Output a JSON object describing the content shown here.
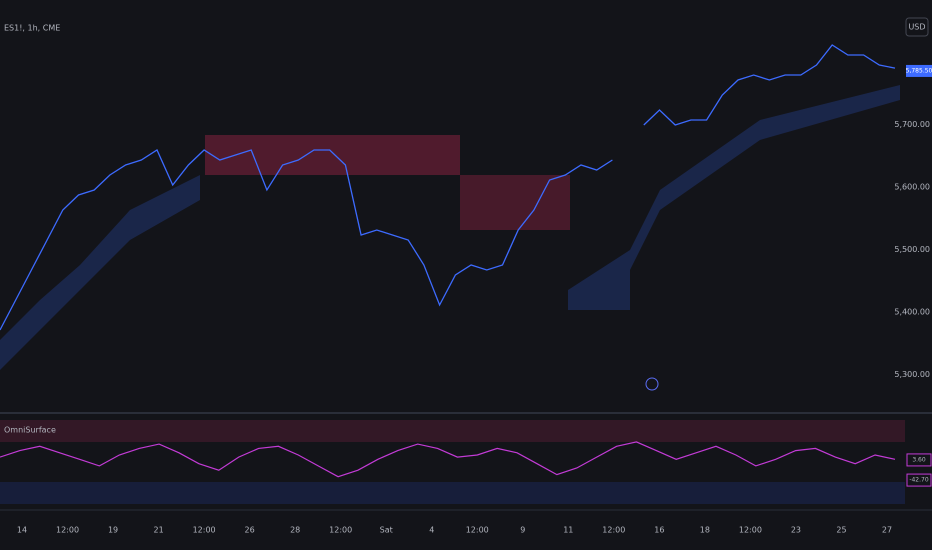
{
  "header": {
    "symbol": "ES1!, 1h, CME",
    "currency": "USD"
  },
  "price_pane": {
    "ylim": [
      5243,
      5899
    ],
    "yticks": [
      {
        "value": 5300,
        "label": "5,300.00"
      },
      {
        "value": 5400,
        "label": "5,400.00"
      },
      {
        "value": 5500,
        "label": "5,500.00"
      },
      {
        "value": 5600,
        "label": "5,600.00"
      },
      {
        "value": 5700,
        "label": "5,700.00"
      }
    ],
    "color": "#3d6bff",
    "values": [
      5371,
      5419,
      5467,
      5515,
      5563,
      5587,
      5595,
      5619,
      5635,
      5643,
      5659,
      5603,
      5635,
      5659,
      5643,
      5651,
      5659,
      5595,
      5635,
      5643,
      5659,
      5659,
      5635,
      5523,
      5531,
      5523,
      5515,
      5475,
      5411,
      5459,
      5475,
      5467,
      5475,
      5531,
      5563,
      5611,
      5619,
      5635,
      5627,
      5643,
      null,
      5699,
      5723,
      5699,
      5707,
      5707,
      5747,
      5771,
      5779,
      5771,
      5779,
      5779,
      5795,
      5827,
      5811,
      5811,
      5795,
      5790
    ],
    "last_price": {
      "value": 5785.5,
      "label": "5,785.50",
      "color": "#3d6bff"
    }
  },
  "indicator": {
    "name": "OmniSurface",
    "ylim": [
      -100,
      100
    ],
    "color": "#c33bd6",
    "values": [
      10,
      25,
      35,
      20,
      5,
      -10,
      15,
      30,
      40,
      20,
      -5,
      -20,
      10,
      30,
      35,
      15,
      -10,
      -35,
      -20,
      5,
      25,
      40,
      30,
      10,
      15,
      30,
      20,
      -5,
      -30,
      -15,
      10,
      35,
      45,
      25,
      5,
      20,
      35,
      15,
      -10,
      5,
      25,
      30,
      10,
      -5,
      15,
      5
    ],
    "value_tags": [
      {
        "value": 3.6,
        "label": "3.60"
      },
      {
        "value": -42.7,
        "label": "-42.70"
      }
    ]
  },
  "time_axis": [
    "14",
    "12:00",
    "19",
    "21",
    "12:00",
    "26",
    "28",
    "12:00",
    "Sat",
    "4",
    "12:00",
    "9",
    "11",
    "12:00",
    "16",
    "18",
    "12:00",
    "23",
    "25",
    "27"
  ]
}
